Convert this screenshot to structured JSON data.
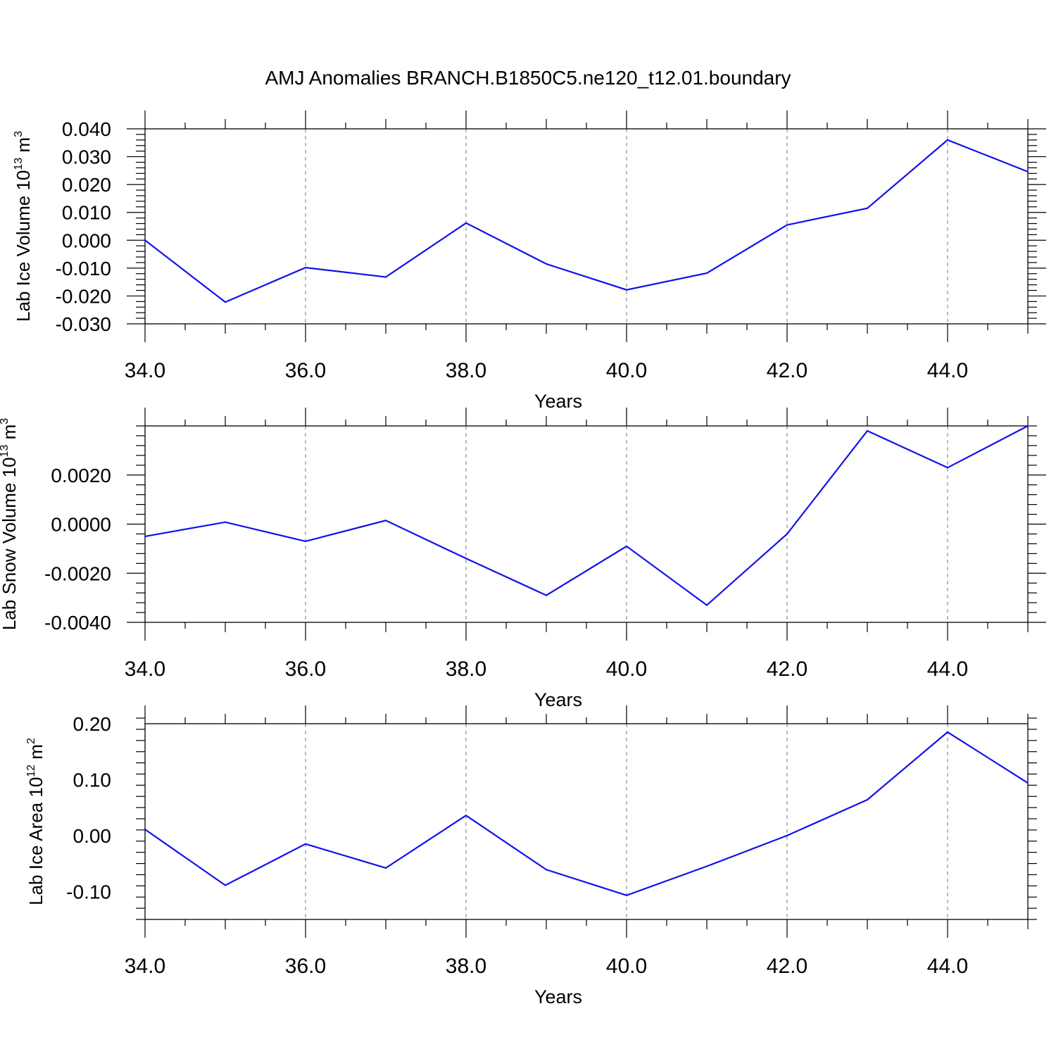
{
  "title": "AMJ Anomalies BRANCH.B1850C5.ne120_t12.01.boundary",
  "colors": {
    "line": "#1111ee",
    "axis": "#000000",
    "grid": "#777777"
  },
  "chart_data": [
    {
      "type": "line",
      "xlabel": "Years",
      "ylabel": {
        "prefix": "Lab Ice Volume 10",
        "exp": "13",
        "unit": " m",
        "unit_exp": "3"
      },
      "x": [
        34,
        35,
        36,
        37,
        38,
        39,
        40,
        41,
        42,
        43,
        44,
        45
      ],
      "values": [
        0.0,
        -0.0222,
        -0.0098,
        -0.0132,
        0.0062,
        -0.0085,
        -0.0178,
        -0.0118,
        0.0055,
        0.0115,
        0.036,
        0.0246
      ],
      "xlim": [
        34,
        45
      ],
      "ylim": [
        -0.03,
        0.04
      ],
      "xticks": [
        "34.0",
        "36.0",
        "38.0",
        "40.0",
        "42.0",
        "44.0"
      ],
      "yticks": [
        -0.03,
        -0.02,
        -0.01,
        0.0,
        0.01,
        0.02,
        0.03,
        0.04
      ],
      "ytick_labels": [
        "-0.030",
        "-0.020",
        "-0.010",
        "0.000",
        "0.010",
        "0.020",
        "0.030",
        "0.040"
      ],
      "grid": "x-dashed"
    },
    {
      "type": "line",
      "xlabel": "Years",
      "ylabel": {
        "prefix": "Lab Snow Volume 10",
        "exp": "13",
        "unit": " m",
        "unit_exp": "3"
      },
      "x": [
        34,
        35,
        36,
        37,
        38,
        39,
        40,
        41,
        42,
        43,
        44,
        45
      ],
      "values": [
        -0.0005,
        8e-05,
        -0.0007,
        0.00015,
        -0.0014,
        -0.0029,
        -0.0009,
        -0.0033,
        -0.0004,
        0.0038,
        0.0023,
        0.004
      ],
      "xlim": [
        34,
        45
      ],
      "ylim": [
        -0.004,
        0.004
      ],
      "xticks": [
        "34.0",
        "36.0",
        "38.0",
        "40.0",
        "42.0",
        "44.0"
      ],
      "yticks": [
        -0.004,
        -0.002,
        0.0,
        0.002
      ],
      "ytick_labels": [
        "-0.0040",
        "-0.0020",
        "0.0000",
        "0.0020"
      ],
      "grid": "x-dashed"
    },
    {
      "type": "line",
      "xlabel": "Years",
      "ylabel": {
        "prefix": "Lab Ice Area 10",
        "exp": "12",
        "unit": " m",
        "unit_exp": "2"
      },
      "x": [
        34,
        35,
        36,
        37,
        38,
        39,
        40,
        41,
        42,
        43,
        44,
        45
      ],
      "values": [
        0.011,
        -0.089,
        -0.015,
        -0.058,
        0.036,
        -0.061,
        -0.107,
        -0.055,
        0.0,
        0.064,
        0.185,
        0.094
      ],
      "xlim": [
        34,
        45
      ],
      "ylim": [
        -0.15,
        0.2
      ],
      "xticks": [
        "34.0",
        "36.0",
        "38.0",
        "40.0",
        "42.0",
        "44.0"
      ],
      "yticks": [
        -0.1,
        0.0,
        0.1,
        0.2
      ],
      "ytick_labels": [
        "-0.10",
        "0.00",
        "0.10",
        "0.20"
      ],
      "grid": "x-dashed"
    }
  ]
}
